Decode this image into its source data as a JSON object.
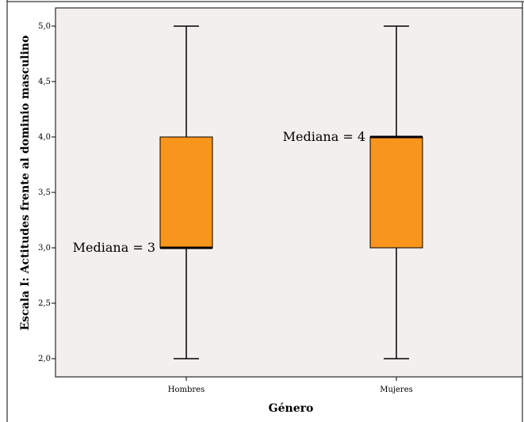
{
  "chart_data": {
    "type": "boxplot",
    "xlabel": "Género",
    "ylabel": "Escala I: Actitudes frente al dominio masculino",
    "categories": [
      "Hombres",
      "Mujeres"
    ],
    "ylim": [
      1.85,
      5.15
    ],
    "yticks": [
      2.0,
      2.5,
      3.0,
      3.5,
      4.0,
      4.5,
      5.0
    ],
    "ytick_labels": [
      "2,0",
      "2,5",
      "3,0",
      "3,5",
      "4,0",
      "4,5",
      "5,0"
    ],
    "boxes": [
      {
        "category": "Hombres",
        "min": 2.0,
        "q1": 3.0,
        "median": 3.0,
        "q3": 4.0,
        "max": 5.0
      },
      {
        "category": "Mujeres",
        "min": 2.0,
        "q1": 3.0,
        "median": 4.0,
        "q3": 4.0,
        "max": 5.0
      }
    ],
    "annotations": [
      {
        "text": "Mediana = 3",
        "category": "Hombres",
        "y": 3.0,
        "side": "left"
      },
      {
        "text": "Mediana = 4",
        "category": "Mujeres",
        "y": 4.0,
        "side": "left"
      }
    ],
    "colors": {
      "box_fill": "#f7951d",
      "plot_bg": "#f3efee",
      "axis": "#000000"
    },
    "grid": false,
    "legend": "none"
  }
}
